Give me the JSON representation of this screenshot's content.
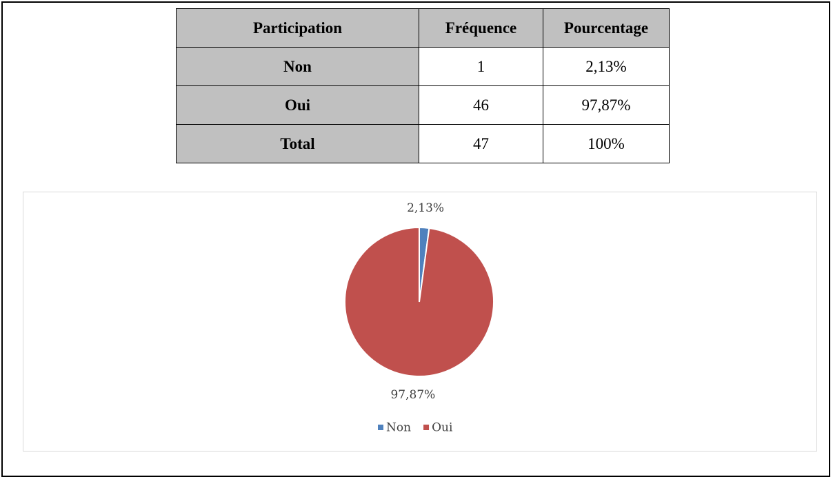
{
  "table": {
    "header": [
      "Participation",
      "Fréquence",
      "Pourcentage"
    ],
    "rows": [
      [
        "Non",
        "1",
        "2,13%"
      ],
      [
        "Oui",
        "46",
        "97,87%"
      ],
      [
        "Total",
        "47",
        "100%"
      ]
    ]
  },
  "chart_data": {
    "type": "pie",
    "categories": [
      "Non",
      "Oui"
    ],
    "values": [
      2.13,
      97.87
    ],
    "value_labels": [
      "2,13%",
      "97,87%"
    ],
    "colors": [
      "#4f81bd",
      "#c0504d"
    ],
    "legend": "bottom"
  }
}
